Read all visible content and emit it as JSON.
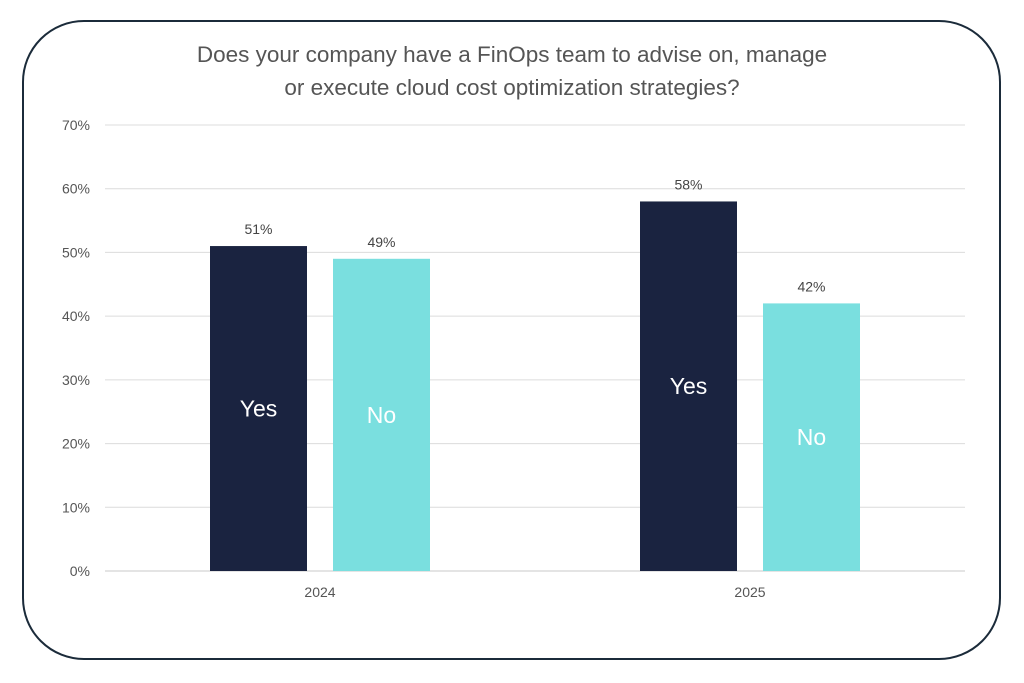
{
  "chart_data": {
    "type": "bar",
    "title": [
      "Does your company have a FinOps team to advise on, manage",
      "or execute cloud cost optimization strategies?"
    ],
    "categories": [
      "2024",
      "2025"
    ],
    "series": [
      {
        "name": "Yes",
        "values": [
          51,
          58
        ],
        "color": "#1a2340",
        "label_color": "#ffffff"
      },
      {
        "name": "No",
        "values": [
          49,
          42
        ],
        "color": "#7adfdf",
        "label_color": "#ffffff"
      }
    ],
    "data_labels": [
      [
        "51%",
        "58%"
      ],
      [
        "49%",
        "42%"
      ]
    ],
    "ylim": [
      0,
      70
    ],
    "yticks": [
      "0%",
      "10%",
      "20%",
      "30%",
      "40%",
      "50%",
      "60%",
      "70%"
    ],
    "ytick_values": [
      0,
      10,
      20,
      30,
      40,
      50,
      60,
      70
    ],
    "grid": true,
    "legend": "none (series names shown inside bars)"
  }
}
